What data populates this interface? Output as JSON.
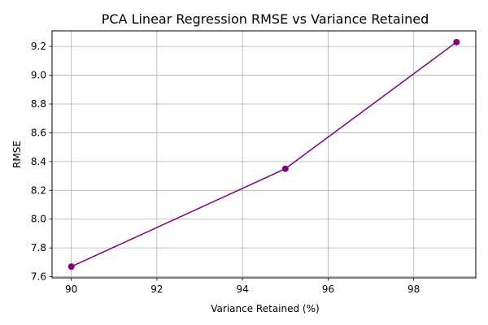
{
  "chart_data": {
    "type": "line",
    "title": "PCA Linear Regression RMSE vs Variance Retained",
    "xlabel": "Variance Retained (%)",
    "ylabel": "RMSE",
    "xlim": [
      89.55,
      99.45
    ],
    "ylim": [
      7.592,
      9.308
    ],
    "xticks": [
      90,
      92,
      94,
      96,
      98
    ],
    "yticks": [
      7.6,
      7.8,
      8.0,
      8.2,
      8.4,
      8.6,
      8.8,
      9.0,
      9.2
    ],
    "xtick_labels": [
      "90",
      "92",
      "94",
      "96",
      "98"
    ],
    "ytick_labels": [
      "7.6",
      "7.8",
      "8.0",
      "8.2",
      "8.4",
      "8.6",
      "8.8",
      "9.0",
      "9.2"
    ],
    "grid": true,
    "legend": "none",
    "series": [
      {
        "x": [
          90,
          95,
          99
        ],
        "values": [
          7.67,
          8.35,
          9.23
        ],
        "color": "#800080",
        "marker": "circle"
      }
    ]
  }
}
